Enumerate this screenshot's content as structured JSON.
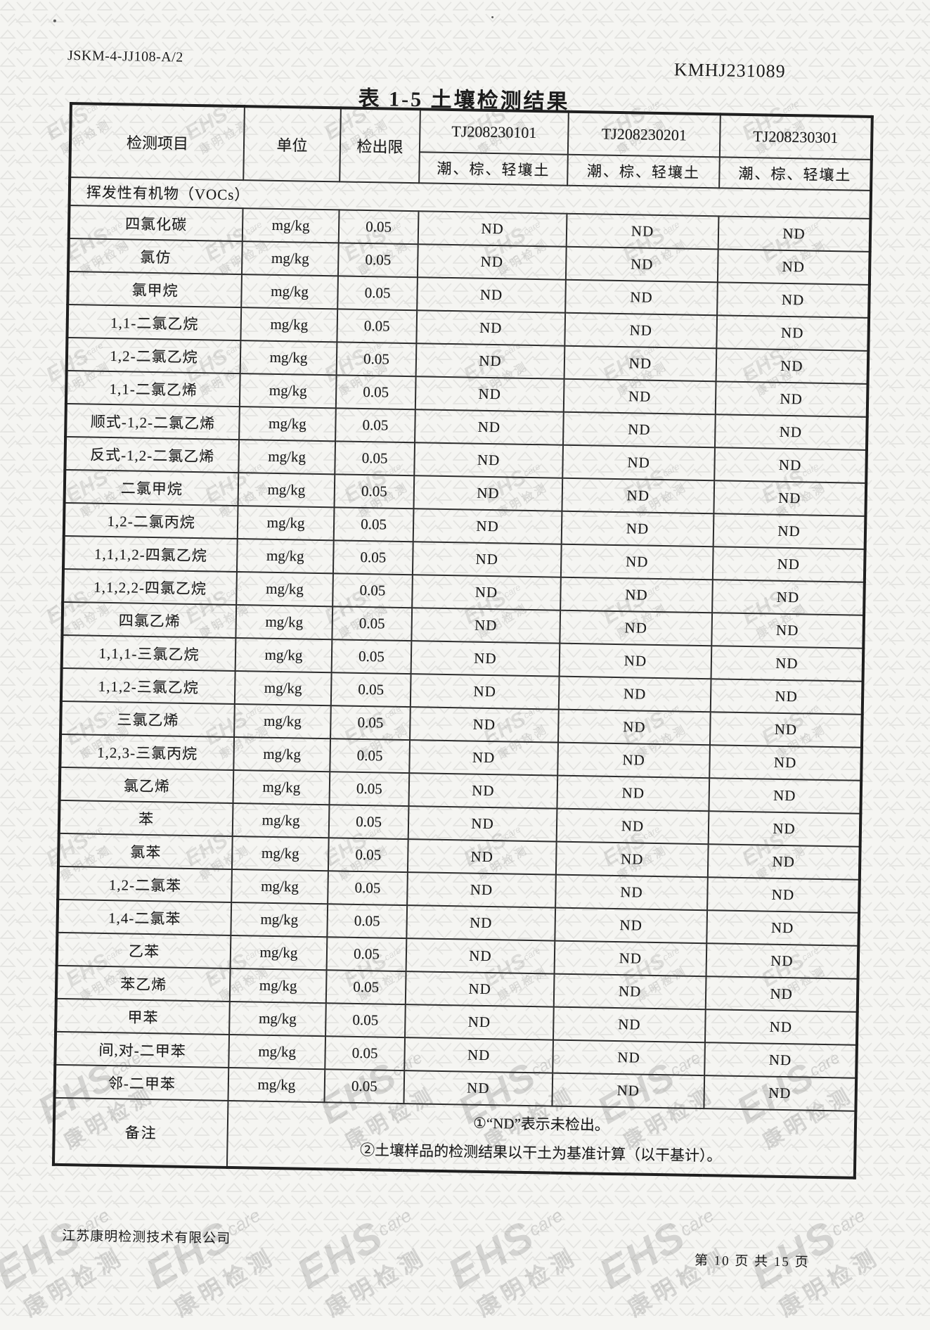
{
  "page": {
    "doc_code": "JSKM-4-JJ108-A/2",
    "report_no": "KMHJ231089",
    "table_title": "表 1-5  土壤检测结果",
    "footer": {
      "company": "江苏康明检测技术有限公司",
      "page_info": "第 10 页 共 15 页"
    }
  },
  "watermark": {
    "brand": "EHS",
    "brand_suffix": "care",
    "company": "康明检测"
  },
  "table": {
    "headers": {
      "item": "检测项目",
      "unit": "单位",
      "detection_limit": "检出限"
    },
    "samples": [
      {
        "id": "TJ208230101",
        "soil_type": "潮、棕、轻壤土"
      },
      {
        "id": "TJ208230201",
        "soil_type": "潮、棕、轻壤土"
      },
      {
        "id": "TJ208230301",
        "soil_type": "潮、棕、轻壤土"
      }
    ],
    "section": "挥发性有机物（VOCs）",
    "rows": [
      {
        "item": "四氯化碳",
        "unit": "mg/kg",
        "limit": "0.05",
        "results": [
          "ND",
          "ND",
          "ND"
        ]
      },
      {
        "item": "氯仿",
        "unit": "mg/kg",
        "limit": "0.05",
        "results": [
          "ND",
          "ND",
          "ND"
        ]
      },
      {
        "item": "氯甲烷",
        "unit": "mg/kg",
        "limit": "0.05",
        "results": [
          "ND",
          "ND",
          "ND"
        ]
      },
      {
        "item": "1,1-二氯乙烷",
        "unit": "mg/kg",
        "limit": "0.05",
        "results": [
          "ND",
          "ND",
          "ND"
        ]
      },
      {
        "item": "1,2-二氯乙烷",
        "unit": "mg/kg",
        "limit": "0.05",
        "results": [
          "ND",
          "ND",
          "ND"
        ]
      },
      {
        "item": "1,1-二氯乙烯",
        "unit": "mg/kg",
        "limit": "0.05",
        "results": [
          "ND",
          "ND",
          "ND"
        ]
      },
      {
        "item": "顺式-1,2-二氯乙烯",
        "unit": "mg/kg",
        "limit": "0.05",
        "results": [
          "ND",
          "ND",
          "ND"
        ]
      },
      {
        "item": "反式-1,2-二氯乙烯",
        "unit": "mg/kg",
        "limit": "0.05",
        "results": [
          "ND",
          "ND",
          "ND"
        ]
      },
      {
        "item": "二氯甲烷",
        "unit": "mg/kg",
        "limit": "0.05",
        "results": [
          "ND",
          "ND",
          "ND"
        ]
      },
      {
        "item": "1,2-二氯丙烷",
        "unit": "mg/kg",
        "limit": "0.05",
        "results": [
          "ND",
          "ND",
          "ND"
        ]
      },
      {
        "item": "1,1,1,2-四氯乙烷",
        "unit": "mg/kg",
        "limit": "0.05",
        "results": [
          "ND",
          "ND",
          "ND"
        ]
      },
      {
        "item": "1,1,2,2-四氯乙烷",
        "unit": "mg/kg",
        "limit": "0.05",
        "results": [
          "ND",
          "ND",
          "ND"
        ]
      },
      {
        "item": "四氯乙烯",
        "unit": "mg/kg",
        "limit": "0.05",
        "results": [
          "ND",
          "ND",
          "ND"
        ]
      },
      {
        "item": "1,1,1-三氯乙烷",
        "unit": "mg/kg",
        "limit": "0.05",
        "results": [
          "ND",
          "ND",
          "ND"
        ]
      },
      {
        "item": "1,1,2-三氯乙烷",
        "unit": "mg/kg",
        "limit": "0.05",
        "results": [
          "ND",
          "ND",
          "ND"
        ]
      },
      {
        "item": "三氯乙烯",
        "unit": "mg/kg",
        "limit": "0.05",
        "results": [
          "ND",
          "ND",
          "ND"
        ]
      },
      {
        "item": "1,2,3-三氯丙烷",
        "unit": "mg/kg",
        "limit": "0.05",
        "results": [
          "ND",
          "ND",
          "ND"
        ]
      },
      {
        "item": "氯乙烯",
        "unit": "mg/kg",
        "limit": "0.05",
        "results": [
          "ND",
          "ND",
          "ND"
        ]
      },
      {
        "item": "苯",
        "unit": "mg/kg",
        "limit": "0.05",
        "results": [
          "ND",
          "ND",
          "ND"
        ]
      },
      {
        "item": "氯苯",
        "unit": "mg/kg",
        "limit": "0.05",
        "results": [
          "ND",
          "ND",
          "ND"
        ]
      },
      {
        "item": "1,2-二氯苯",
        "unit": "mg/kg",
        "limit": "0.05",
        "results": [
          "ND",
          "ND",
          "ND"
        ]
      },
      {
        "item": "1,4-二氯苯",
        "unit": "mg/kg",
        "limit": "0.05",
        "results": [
          "ND",
          "ND",
          "ND"
        ]
      },
      {
        "item": "乙苯",
        "unit": "mg/kg",
        "limit": "0.05",
        "results": [
          "ND",
          "ND",
          "ND"
        ]
      },
      {
        "item": "苯乙烯",
        "unit": "mg/kg",
        "limit": "0.05",
        "results": [
          "ND",
          "ND",
          "ND"
        ]
      },
      {
        "item": "甲苯",
        "unit": "mg/kg",
        "limit": "0.05",
        "results": [
          "ND",
          "ND",
          "ND"
        ]
      },
      {
        "item": "间,对-二甲苯",
        "unit": "mg/kg",
        "limit": "0.05",
        "results": [
          "ND",
          "ND",
          "ND"
        ]
      },
      {
        "item": "邻-二甲苯",
        "unit": "mg/kg",
        "limit": "0.05",
        "results": [
          "ND",
          "ND",
          "ND"
        ]
      }
    ],
    "remark_label": "备注",
    "remarks": [
      "①“ND”表示未检出。",
      "②土壤样品的检测结果以干土为基准计算（以干基计）。"
    ]
  }
}
